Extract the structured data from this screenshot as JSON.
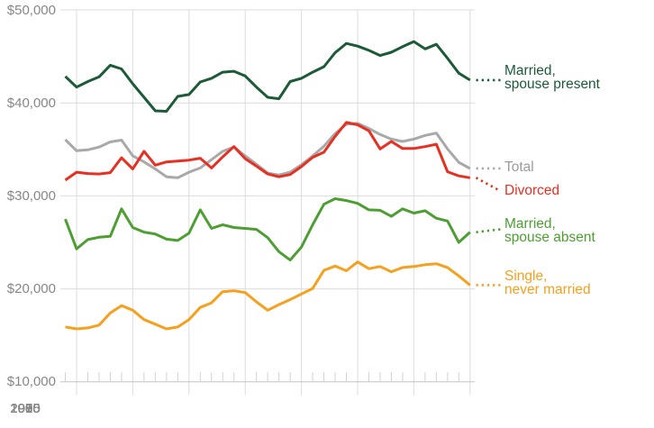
{
  "chart_data": {
    "type": "line",
    "title": "",
    "ylabel": "",
    "xlabel": "",
    "ylim": [
      10000,
      50000
    ],
    "xlim": [
      1974,
      2010
    ],
    "grid": true,
    "legend_position": "right",
    "y_ticks": [
      {
        "label": "$50,000",
        "value": 50000
      },
      {
        "label": "$40,000",
        "value": 40000
      },
      {
        "label": "$30,000",
        "value": 30000
      },
      {
        "label": "$20,000",
        "value": 20000
      },
      {
        "label": "$10,000",
        "value": 10000
      }
    ],
    "x_ticks": [
      {
        "label": "1975",
        "year": 1975
      },
      {
        "label": "1980",
        "year": 1980
      },
      {
        "label": "1985",
        "year": 1985
      },
      {
        "label": "1990",
        "year": 1990
      },
      {
        "label": "1995",
        "year": 1995
      },
      {
        "label": "2000",
        "year": 2000
      },
      {
        "label": "2005",
        "year": 2005
      },
      {
        "label": "2010",
        "year": 2010
      }
    ],
    "x": [
      1974,
      1975,
      1976,
      1977,
      1978,
      1979,
      1980,
      1981,
      1982,
      1983,
      1984,
      1985,
      1986,
      1987,
      1988,
      1989,
      1990,
      1991,
      1992,
      1993,
      1994,
      1995,
      1996,
      1997,
      1998,
      1999,
      2000,
      2001,
      2002,
      2003,
      2004,
      2005,
      2006,
      2007,
      2008,
      2009,
      2010
    ],
    "colors": {
      "married_spouse_present": "#1c5a38",
      "total_line": "#a9a9a9",
      "total_label": "#9b9b9b",
      "divorced": "#e63022",
      "married_spouse_absent": "#4d9e33",
      "single_never_married": "#f5a01e",
      "gridline": "#dcdcdc",
      "axis": "#c4c4c4",
      "tick_text": "#878787"
    },
    "series": [
      {
        "id": "married-spouse-present",
        "label_lines": [
          "Married,",
          "spouse present"
        ],
        "color": "#1c5a38",
        "values": [
          42850,
          41700,
          42300,
          42800,
          44050,
          43650,
          42050,
          40600,
          39150,
          39100,
          40700,
          40900,
          42250,
          42650,
          43300,
          43400,
          42900,
          41700,
          40600,
          40450,
          42300,
          42650,
          43300,
          43900,
          45400,
          46400,
          46100,
          45650,
          45100,
          45450,
          46050,
          46600,
          45800,
          46300,
          44800,
          43200,
          42450
        ]
      },
      {
        "id": "total",
        "label_lines": [
          "Total"
        ],
        "color": "#a9a9a9",
        "label_color": "#9b9b9b",
        "values": [
          36050,
          34850,
          34950,
          35250,
          35800,
          36000,
          34300,
          33650,
          32900,
          32050,
          31950,
          32550,
          33000,
          33900,
          34800,
          35250,
          34300,
          33400,
          32450,
          32250,
          32550,
          33350,
          34300,
          35350,
          36700,
          37700,
          37800,
          37250,
          36600,
          36100,
          35850,
          36100,
          36500,
          36750,
          35050,
          33600,
          32950
        ]
      },
      {
        "id": "divorced",
        "label_lines": [
          "Divorced"
        ],
        "color": "#e63022",
        "values": [
          31700,
          32550,
          32400,
          32350,
          32500,
          34100,
          32900,
          34800,
          33300,
          33650,
          33750,
          33850,
          34050,
          33000,
          34200,
          35300,
          34000,
          33200,
          32350,
          32050,
          32300,
          33150,
          34150,
          34700,
          36400,
          37900,
          37650,
          37000,
          35050,
          35850,
          35100,
          35100,
          35300,
          35550,
          32600,
          32150,
          31950
        ]
      },
      {
        "id": "married-spouse-absent",
        "label_lines": [
          "Married,",
          "spouse absent"
        ],
        "color": "#4d9e33",
        "values": [
          27500,
          24300,
          25300,
          25550,
          25650,
          28600,
          26600,
          26100,
          25900,
          25350,
          25200,
          26000,
          28500,
          26500,
          26900,
          26600,
          26500,
          26400,
          25500,
          24000,
          23100,
          24500,
          26900,
          29100,
          29700,
          29500,
          29200,
          28500,
          28450,
          27800,
          28600,
          28150,
          28400,
          27600,
          27300,
          25000,
          26100
        ]
      },
      {
        "id": "single-never-married",
        "label_lines": [
          "Single,",
          "never married"
        ],
        "color": "#f5a01e",
        "values": [
          15900,
          15700,
          15800,
          16100,
          17400,
          18200,
          17700,
          16700,
          16200,
          15700,
          15900,
          16700,
          18000,
          18500,
          19700,
          19800,
          19600,
          18600,
          17700,
          18300,
          18850,
          19450,
          20050,
          22000,
          22450,
          21950,
          22900,
          22170,
          22400,
          21840,
          22300,
          22400,
          22600,
          22700,
          22300,
          21400,
          20400
        ]
      }
    ]
  }
}
